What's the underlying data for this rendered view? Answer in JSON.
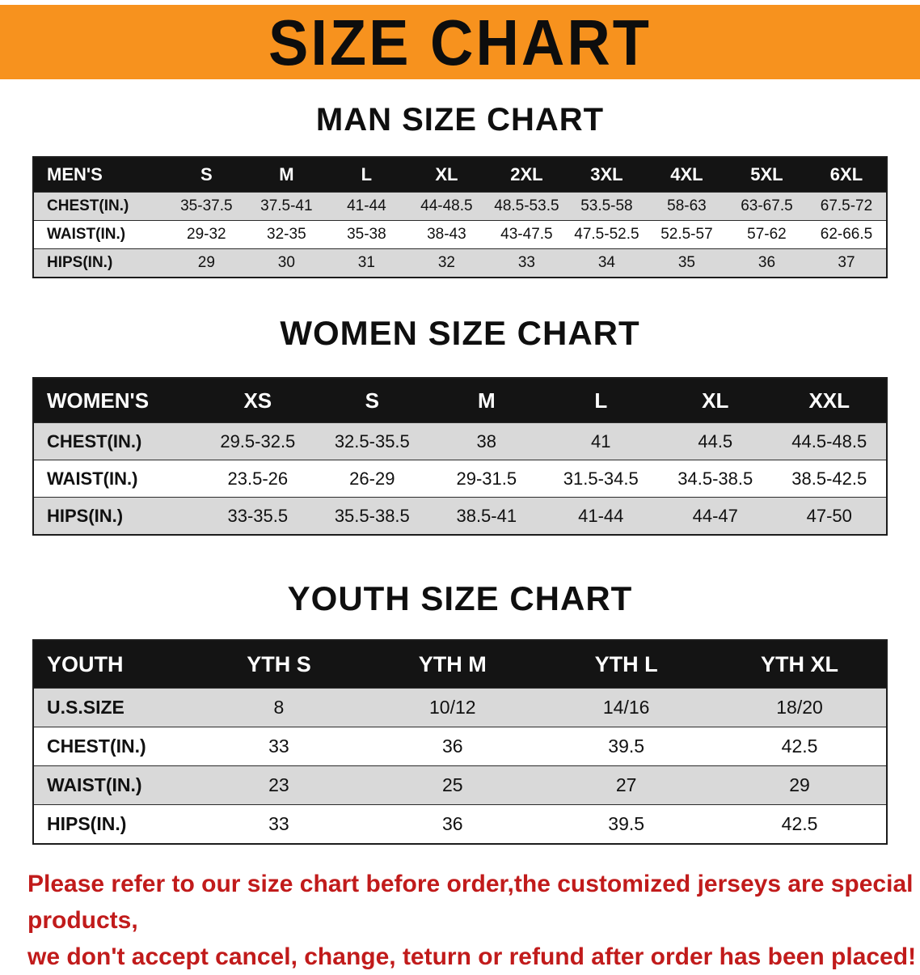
{
  "banner": {
    "title": "SIZE CHART",
    "bg_color": "#F7921E",
    "text_color": "#0d0d0d"
  },
  "men": {
    "heading": "MAN SIZE CHART",
    "header": [
      "MEN'S",
      "S",
      "M",
      "L",
      "XL",
      "2XL",
      "3XL",
      "4XL",
      "5XL",
      "6XL"
    ],
    "rows": [
      {
        "label": "CHEST(IN.)",
        "values": [
          "35-37.5",
          "37.5-41",
          "41-44",
          "44-48.5",
          "48.5-53.5",
          "53.5-58",
          "58-63",
          "63-67.5",
          "67.5-72"
        ]
      },
      {
        "label": "WAIST(IN.)",
        "values": [
          "29-32",
          "32-35",
          "35-38",
          "38-43",
          "43-47.5",
          "47.5-52.5",
          "52.5-57",
          "57-62",
          "62-66.5"
        ]
      },
      {
        "label": "HIPS(IN.)",
        "values": [
          "29",
          "30",
          "31",
          "32",
          "33",
          "34",
          "35",
          "36",
          "37"
        ]
      }
    ]
  },
  "women": {
    "heading": "WOMEN SIZE CHART",
    "header": [
      "WOMEN'S",
      "XS",
      "S",
      "M",
      "L",
      "XL",
      "XXL"
    ],
    "rows": [
      {
        "label": "CHEST(IN.)",
        "values": [
          "29.5-32.5",
          "32.5-35.5",
          "38",
          "41",
          "44.5",
          "44.5-48.5"
        ]
      },
      {
        "label": "WAIST(IN.)",
        "values": [
          "23.5-26",
          "26-29",
          "29-31.5",
          "31.5-34.5",
          "34.5-38.5",
          "38.5-42.5"
        ]
      },
      {
        "label": "HIPS(IN.)",
        "values": [
          "33-35.5",
          "35.5-38.5",
          "38.5-41",
          "41-44",
          "44-47",
          "47-50"
        ]
      }
    ]
  },
  "youth": {
    "heading": "YOUTH SIZE CHART",
    "header": [
      "YOUTH",
      "YTH S",
      "YTH M",
      "YTH L",
      "YTH XL"
    ],
    "rows": [
      {
        "label": "U.S.SIZE",
        "values": [
          "8",
          "10/12",
          "14/16",
          "18/20"
        ]
      },
      {
        "label": "CHEST(IN.)",
        "values": [
          "33",
          "36",
          "39.5",
          "42.5"
        ]
      },
      {
        "label": "WAIST(IN.)",
        "values": [
          "23",
          "25",
          "27",
          "29"
        ]
      },
      {
        "label": "HIPS(IN.)",
        "values": [
          "33",
          "36",
          "39.5",
          "42.5"
        ]
      }
    ]
  },
  "footer": {
    "line1": "Please refer to our size chart before order,the customized jerseys are special products,",
    "line2": "we don't accept cancel, change, teturn or refund after order has been placed!",
    "color": "#c11b1b"
  }
}
